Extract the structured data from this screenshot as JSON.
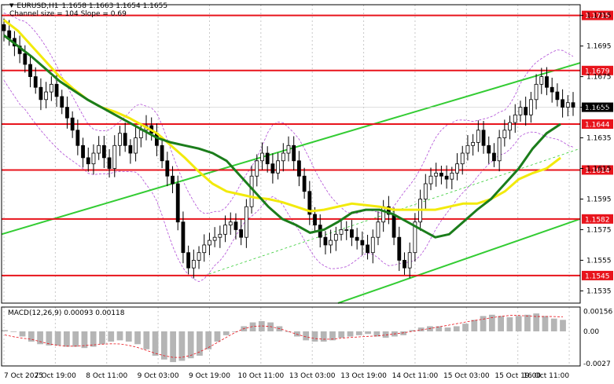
{
  "header": {
    "symbol_tf": "EURUSD,H1",
    "ohlc": "1.1658 1.1663 1.1654 1.1655",
    "channel_info": "Channel size = 104 Slope = 0.69"
  },
  "macd_panel": {
    "label": "MACD(12,26,9) 0.00093 0.00118"
  },
  "colors": {
    "candles": "#000000",
    "level_lines": "#e8141c",
    "level_label_bg": "#e8141c",
    "level_label_text": "#ffffff",
    "price_label_bg": "#000000",
    "ma_green": "#1b7d1b",
    "ma_yellow": "#f2ea0c",
    "channel": "#33cc33",
    "bollinger": "#b04dd6",
    "macd_hist": "#b5b5b5",
    "macd_signal": "#e8141c",
    "grid": "#c8c8c8"
  },
  "chart_data": [
    {
      "type": "candlestick",
      "instrument": "EURUSD",
      "timeframe": "H1",
      "ylim": [
        1.1527,
        1.1722
      ],
      "y_ticks": [
        "1.1715",
        "1.1695",
        "1.1675",
        "1.1655",
        "1.1635",
        "1.1615",
        "1.1595",
        "1.1575",
        "1.1555",
        "1.1535"
      ],
      "x_ticks": [
        "7 Oct 2025",
        "7 Oct 19:00",
        "8 Oct 11:00",
        "9 Oct 03:00",
        "9 Oct 19:00",
        "10 Oct 11:00",
        "13 Oct 03:00",
        "13 Oct 19:00",
        "14 Oct 11:00",
        "15 Oct 03:00",
        "15 Oct 19:00",
        "16 Oct 11:00"
      ],
      "level_labels": [
        "1.1715",
        "1.1679",
        "1.1644",
        "1.1614",
        "1.1582",
        "1.1545"
      ],
      "current_price": "1.1655",
      "close_series": [
        1.1705,
        1.17,
        1.1695,
        1.169,
        1.1683,
        1.1675,
        1.1668,
        1.166,
        1.1665,
        1.167,
        1.1662,
        1.1655,
        1.1648,
        1.164,
        1.163,
        1.1622,
        1.1618,
        1.1625,
        1.163,
        1.1622,
        1.1615,
        1.163,
        1.1638,
        1.163,
        1.1625,
        1.1635,
        1.164,
        1.1643,
        1.1638,
        1.163,
        1.162,
        1.161,
        1.1605,
        1.158,
        1.156,
        1.155,
        1.1555,
        1.156,
        1.1565,
        1.1568,
        1.157,
        1.1572,
        1.1578,
        1.158,
        1.1575,
        1.157,
        1.159,
        1.161,
        1.162,
        1.1625,
        1.1618,
        1.1612,
        1.162,
        1.1625,
        1.163,
        1.162,
        1.161,
        1.16,
        1.1585,
        1.1578,
        1.157,
        1.1565,
        1.1568,
        1.1572,
        1.1575,
        1.1575,
        1.157,
        1.1568,
        1.1565,
        1.156,
        1.157,
        1.158,
        1.159,
        1.1585,
        1.157,
        1.1555,
        1.155,
        1.156,
        1.158,
        1.1595,
        1.1605,
        1.161,
        1.1612,
        1.161,
        1.1608,
        1.1612,
        1.1618,
        1.1625,
        1.163,
        1.1632,
        1.164,
        1.163,
        1.1625,
        1.162,
        1.1635,
        1.164,
        1.1645,
        1.165,
        1.1655,
        1.165,
        1.166,
        1.167,
        1.1675,
        1.1668,
        1.1665,
        1.166,
        1.1655,
        1.1658,
        1.1655
      ],
      "ma_green": [
        1.1702,
        1.1695,
        1.1688,
        1.168,
        1.1672,
        1.1666,
        1.166,
        1.1655,
        1.165,
        1.1645,
        1.164,
        1.1635,
        1.1632,
        1.163,
        1.1628,
        1.1625,
        1.162,
        1.161,
        1.16,
        1.159,
        1.1582,
        1.1578,
        1.1573,
        1.1575,
        1.158,
        1.1586,
        1.1588,
        1.1588,
        1.1585,
        1.158,
        1.1575,
        1.157,
        1.1572,
        1.158,
        1.1588,
        1.1595,
        1.1605,
        1.1615,
        1.1628,
        1.1638,
        1.1644
      ],
      "ma_yellow": [
        1.1712,
        1.1705,
        1.1695,
        1.1685,
        1.1675,
        1.1667,
        1.166,
        1.1655,
        1.1652,
        1.1648,
        1.1643,
        1.1638,
        1.163,
        1.1622,
        1.1613,
        1.1605,
        1.16,
        1.1598,
        1.1596,
        1.1595,
        1.1593,
        1.159,
        1.1587,
        1.1588,
        1.159,
        1.1592,
        1.1591,
        1.159,
        1.1588,
        1.1588,
        1.1588,
        1.1588,
        1.159,
        1.1592,
        1.1592,
        1.1595,
        1.16,
        1.1608,
        1.1612,
        1.1615,
        1.1622
      ]
    },
    {
      "type": "bar",
      "indicator": "MACD(12,26,9)",
      "macd_value": 0.00093,
      "signal_value": 0.00118,
      "ylim": [
        -0.0027,
        0.0019
      ],
      "y_ticks": [
        "0.00156",
        "0.00",
        "-0.0027"
      ],
      "histogram": [
        0.0001,
        0.0,
        -0.0004,
        -0.0008,
        -0.001,
        -0.0011,
        -0.0011,
        -0.0012,
        -0.0012,
        -0.0013,
        -0.0012,
        -0.001,
        -0.0008,
        -0.0007,
        -0.0008,
        -0.001,
        -0.0014,
        -0.0019,
        -0.0022,
        -0.0024,
        -0.0023,
        -0.0021,
        -0.0019,
        -0.0014,
        -0.0008,
        -0.0003,
        0.0,
        0.0004,
        0.0007,
        0.0008,
        0.0007,
        0.0004,
        0.0,
        -0.0004,
        -0.0007,
        -0.0008,
        -0.0008,
        -0.0007,
        -0.0005,
        -0.0004,
        -0.0003,
        -0.0002,
        -0.0004,
        -0.0005,
        -0.0004,
        -0.0003,
        0.0001,
        0.0003,
        0.0004,
        0.0004,
        0.0003,
        0.0004,
        0.0006,
        0.0009,
        0.0012,
        0.0013,
        0.0012,
        0.0011,
        0.0012,
        0.0013,
        0.0014,
        0.0012,
        0.001,
        0.0009
      ]
    }
  ]
}
